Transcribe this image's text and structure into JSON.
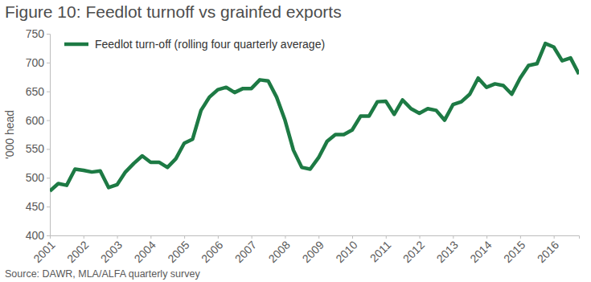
{
  "chart_data": {
    "type": "line",
    "title": "Figure 10: Feedlot turnoff vs grainfed exports",
    "y_label": "'000 head",
    "source": "Source: DAWR, MLA/ALFA quarterly survey",
    "categories": [
      "2001",
      null,
      null,
      null,
      "2002",
      null,
      null,
      null,
      "2003",
      null,
      null,
      null,
      "2004",
      null,
      null,
      null,
      "2005",
      null,
      null,
      null,
      "2006",
      null,
      null,
      null,
      "2007",
      null,
      null,
      null,
      "2008",
      null,
      null,
      null,
      "2009",
      null,
      null,
      null,
      "2010",
      null,
      null,
      null,
      "2011",
      null,
      null,
      null,
      "2012",
      null,
      null,
      null,
      "2013",
      null,
      null,
      null,
      "2014",
      null,
      null,
      null,
      "2015",
      null,
      null,
      null,
      "2016",
      null,
      null,
      null
    ],
    "series": [
      {
        "name": "Feedlot turn-off (rolling four quarterly average)",
        "color": "#1d7a44",
        "values": [
          477,
          490,
          487,
          515,
          513,
          510,
          512,
          483,
          488,
          510,
          525,
          538,
          527,
          527,
          518,
          533,
          560,
          567,
          617,
          640,
          653,
          657,
          648,
          655,
          655,
          670,
          668,
          640,
          600,
          548,
          518,
          515,
          535,
          563,
          575,
          575,
          583,
          607,
          607,
          632,
          633,
          610,
          635,
          620,
          612,
          620,
          617,
          600,
          627,
          632,
          645,
          673,
          657,
          663,
          660,
          645,
          673,
          695,
          698,
          733,
          727,
          703,
          708,
          680
        ]
      }
    ],
    "ylim": [
      400,
      750
    ],
    "yticks": [
      400,
      450,
      500,
      550,
      600,
      650,
      700,
      750
    ],
    "grid": false,
    "legend": "top-left"
  }
}
